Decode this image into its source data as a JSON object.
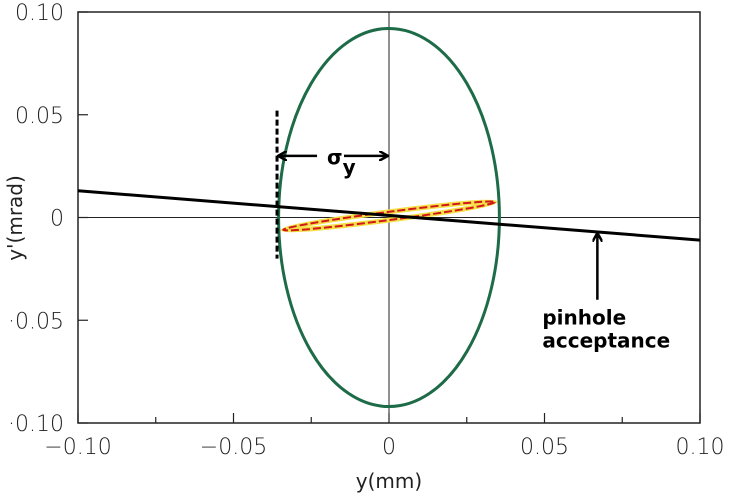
{
  "chart_data": {
    "type": "line",
    "title": "",
    "xlabel": "y(mm)",
    "ylabel": "y'(mrad)",
    "xlim": [
      -0.1,
      0.1
    ],
    "ylim": [
      -0.1,
      0.1
    ],
    "x_ticks": [
      "-0.10",
      "-0.05",
      "0",
      "0.05",
      "0.10"
    ],
    "x_tick_values": [
      -0.1,
      -0.05,
      0,
      0.05,
      0.1
    ],
    "y_ticks": [
      "0.10",
      "0.05",
      "0",
      "-0.05",
      "-0.10"
    ],
    "y_tick_values": [
      0.1,
      0.05,
      0,
      -0.05,
      -0.1
    ],
    "colors": {
      "outer_ellipse": "#1e6b48",
      "inner_ellipse": "#d01818",
      "inner_fill_outline": "#f5e04a",
      "acceptance": "#000000"
    },
    "series": [
      {
        "name": "outer phase-space ellipse",
        "shape": "ellipse",
        "center": [
          0,
          0
        ],
        "semi_y": 0.0355,
        "semi_yprime": 0.092
      },
      {
        "name": "beam ellipse",
        "shape": "tilted-ellipse",
        "endpoints": [
          [
            -0.034,
            -0.006
          ],
          [
            0.034,
            0.0075
          ]
        ],
        "width_yprime": 0.004
      },
      {
        "name": "pinhole acceptance",
        "shape": "line",
        "x": [
          -0.1,
          0.1
        ],
        "y": [
          0.013,
          -0.011
        ]
      },
      {
        "name": "sigma_y marker",
        "shape": "vline",
        "x": -0.036,
        "y": [
          0.052,
          -0.02
        ]
      }
    ],
    "annotations": {
      "sigma_label": "σ",
      "sigma_sub": "y",
      "sigma_arrow": {
        "from": -0.036,
        "to": 0,
        "at": 0.03
      },
      "acceptance_label_1": "pinhole",
      "acceptance_label_2": "acceptance",
      "acceptance_arrow": {
        "x": 0.067,
        "from": -0.04,
        "to": -0.007
      }
    }
  }
}
